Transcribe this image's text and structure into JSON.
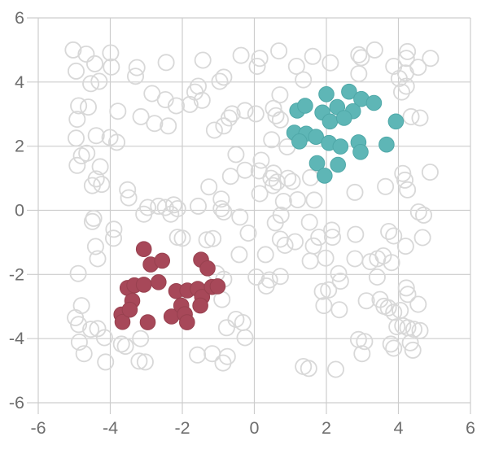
{
  "figure": {
    "kind": "scatter-plot",
    "background": "#ffffff",
    "grid_color": "#cdcdcd",
    "tick_label_color": "#6e6e6e"
  },
  "chart_data": {
    "type": "scatter",
    "title": "",
    "xlabel": "",
    "ylabel": "",
    "xlim": [
      -6,
      6
    ],
    "ylim": [
      -6,
      6
    ],
    "x_ticks": [
      -6,
      -4,
      -2,
      0,
      2,
      4,
      6
    ],
    "y_ticks": [
      6,
      4,
      2,
      0,
      -2,
      -4,
      -6
    ],
    "grid": true,
    "legend": "none",
    "series": [
      {
        "name": "unlabeled",
        "marker": "open-circle",
        "fill": "none",
        "stroke": "#d8d8d8",
        "stroke_width": 1.8,
        "radius": 9.6,
        "points": [
          [
            -5.03,
            5.0
          ],
          [
            -4.67,
            4.87
          ],
          [
            -4.43,
            4.57
          ],
          [
            -3.99,
            4.91
          ],
          [
            -4.95,
            4.34
          ],
          [
            -3.97,
            4.47
          ],
          [
            -3.3,
            4.18
          ],
          [
            -3.26,
            4.45
          ],
          [
            -2.45,
            4.61
          ],
          [
            -1.43,
            4.68
          ],
          [
            -0.37,
            4.83
          ],
          [
            -4.54,
            3.95
          ],
          [
            -4.31,
            4.02
          ],
          [
            -0.96,
            4.02
          ],
          [
            -0.85,
            4.15
          ],
          [
            -1.56,
            3.87
          ],
          [
            -1.65,
            3.69
          ],
          [
            -2.84,
            3.64
          ],
          [
            -2.47,
            3.45
          ],
          [
            -2.17,
            3.26
          ],
          [
            -1.79,
            3.3
          ],
          [
            -1.45,
            3.43
          ],
          [
            -4.88,
            3.26
          ],
          [
            -4.61,
            3.22
          ],
          [
            -4.92,
            2.84
          ],
          [
            -3.79,
            3.09
          ],
          [
            -3.15,
            2.92
          ],
          [
            -2.77,
            2.71
          ],
          [
            -2.39,
            2.63
          ],
          [
            -0.7,
            2.88
          ],
          [
            -0.62,
            3.01
          ],
          [
            -0.85,
            2.63
          ],
          [
            -1.11,
            2.5
          ],
          [
            -4.95,
            2.25
          ],
          [
            -4.39,
            2.33
          ],
          [
            -4.01,
            2.27
          ],
          [
            -3.82,
            2.12
          ],
          [
            -4.8,
            1.7
          ],
          [
            -4.65,
            1.78
          ],
          [
            -4.92,
            1.4
          ],
          [
            -4.28,
            1.36
          ],
          [
            -4.39,
            0.98
          ],
          [
            -4.5,
            0.77
          ],
          [
            -4.24,
            0.81
          ],
          [
            -3.52,
            0.64
          ],
          [
            -3.49,
            0.39
          ],
          [
            -2.96,
            0.09
          ],
          [
            -2.66,
            0.13
          ],
          [
            -2.47,
            0.09
          ],
          [
            -2.24,
            0.17
          ],
          [
            -2.13,
            0.05
          ],
          [
            -1.56,
            0.13
          ],
          [
            -0.92,
            0.35
          ],
          [
            -0.92,
            0.05
          ],
          [
            -0.4,
            -0.21
          ],
          [
            -4.46,
            -0.25
          ],
          [
            -3.07,
            -0.12
          ],
          [
            -2.32,
            -0.12
          ],
          [
            -0.51,
            1.74
          ],
          [
            -0.66,
            1.06
          ],
          [
            -1.26,
            0.73
          ],
          [
            -0.26,
            3.11
          ],
          [
            -0.26,
            1.25
          ],
          [
            0.15,
            4.74
          ],
          [
            0.08,
            4.49
          ],
          [
            0.68,
            4.97
          ],
          [
            1.62,
            4.8
          ],
          [
            1.17,
            4.49
          ],
          [
            1.36,
            4.07
          ],
          [
            2.11,
            4.6
          ],
          [
            2.9,
            4.85
          ],
          [
            2.97,
            4.76
          ],
          [
            3.34,
            5.0
          ],
          [
            2.9,
            4.26
          ],
          [
            3.87,
            4.49
          ],
          [
            4.25,
            4.95
          ],
          [
            4.22,
            4.74
          ],
          [
            4.89,
            4.74
          ],
          [
            4.55,
            4.46
          ],
          [
            4.2,
            4.28
          ],
          [
            4.02,
            4.11
          ],
          [
            4.22,
            3.87
          ],
          [
            4.09,
            3.69
          ],
          [
            0.71,
            3.6
          ],
          [
            0.04,
            3.01
          ],
          [
            0.53,
            3.18
          ],
          [
            0.6,
            2.95
          ],
          [
            0.72,
            2.82
          ],
          [
            4.35,
            2.92
          ],
          [
            4.6,
            2.88
          ],
          [
            0.48,
            2.2
          ],
          [
            0.91,
            1.98
          ],
          [
            0.19,
            1.56
          ],
          [
            0.13,
            1.23
          ],
          [
            0.53,
            1.16
          ],
          [
            0.46,
            1.0
          ],
          [
            0.63,
            0.88
          ],
          [
            0.52,
            0.77
          ],
          [
            0.93,
            1.0
          ],
          [
            1.05,
            0.9
          ],
          [
            1.56,
            1.02
          ],
          [
            0.15,
            0.52
          ],
          [
            0.81,
            0.28
          ],
          [
            1.2,
            0.33
          ],
          [
            1.66,
            0.32
          ],
          [
            2.79,
            0.56
          ],
          [
            3.64,
            0.74
          ],
          [
            4.12,
            1.15
          ],
          [
            4.18,
            0.94
          ],
          [
            4.88,
            1.19
          ],
          [
            4.25,
            0.64
          ],
          [
            0.74,
            -0.15
          ],
          [
            4.56,
            -0.05
          ],
          [
            4.7,
            -0.15
          ],
          [
            0.58,
            -0.39
          ],
          [
            1.53,
            -0.37
          ],
          [
            1.79,
            -0.84
          ],
          [
            -4.5,
            -0.35
          ],
          [
            -3.9,
            -0.59
          ],
          [
            -3.91,
            -0.87
          ],
          [
            -4.41,
            -1.13
          ],
          [
            -4.35,
            -1.51
          ],
          [
            -2.13,
            -0.84
          ],
          [
            -2.0,
            -0.87
          ],
          [
            -1.32,
            -0.92
          ],
          [
            -1.05,
            -1.97
          ],
          [
            -0.85,
            -2.15
          ],
          [
            -0.42,
            -1.38
          ],
          [
            -0.17,
            -0.71
          ],
          [
            -1.15,
            -0.88
          ],
          [
            -0.85,
            -0.05
          ],
          [
            -4.89,
            -1.97
          ],
          [
            -4.8,
            -2.97
          ],
          [
            -4.97,
            -3.35
          ],
          [
            -4.88,
            -3.56
          ],
          [
            -4.54,
            -3.71
          ],
          [
            -4.35,
            -3.69
          ],
          [
            -4.86,
            -4.11
          ],
          [
            -4.73,
            -4.47
          ],
          [
            -4.16,
            -3.97
          ],
          [
            -4.13,
            -4.73
          ],
          [
            -3.69,
            -4.17
          ],
          [
            -3.58,
            -4.24
          ],
          [
            -3.16,
            -4.0
          ],
          [
            -3.2,
            -4.7
          ],
          [
            -3.03,
            -4.73
          ],
          [
            -1.58,
            -4.51
          ],
          [
            -1.17,
            -4.47
          ],
          [
            -0.87,
            -4.76
          ],
          [
            -0.75,
            -4.56
          ],
          [
            -0.51,
            -3.4
          ],
          [
            -0.32,
            -3.5
          ],
          [
            -0.9,
            -2.78
          ],
          [
            -0.77,
            -3.66
          ],
          [
            -0.26,
            -3.97
          ],
          [
            0.72,
            -0.9
          ],
          [
            0.85,
            -1.09
          ],
          [
            1.13,
            -0.98
          ],
          [
            1.64,
            -1.11
          ],
          [
            2.15,
            -0.62
          ],
          [
            2.17,
            -0.84
          ],
          [
            2.81,
            -0.75
          ],
          [
            3.73,
            -0.66
          ],
          [
            3.87,
            -0.8
          ],
          [
            4.67,
            -0.85
          ],
          [
            4.2,
            -1.12
          ],
          [
            0.31,
            -1.38
          ],
          [
            1.55,
            -1.58
          ],
          [
            1.98,
            -1.49
          ],
          [
            2.79,
            -1.51
          ],
          [
            3.22,
            -1.6
          ],
          [
            3.42,
            -1.51
          ],
          [
            3.58,
            -1.42
          ],
          [
            3.81,
            -1.63
          ],
          [
            0.42,
            -2.17
          ],
          [
            0.33,
            -2.36
          ],
          [
            0.05,
            -2.08
          ],
          [
            0.72,
            -2.06
          ],
          [
            2.34,
            -1.97
          ],
          [
            2.39,
            -2.21
          ],
          [
            1.89,
            -2.53
          ],
          [
            2.06,
            -2.48
          ],
          [
            1.93,
            -2.97
          ],
          [
            2.36,
            -3.1
          ],
          [
            3.41,
            -2.08
          ],
          [
            3.11,
            -2.82
          ],
          [
            3.49,
            -2.78
          ],
          [
            3.6,
            -2.99
          ],
          [
            3.72,
            -3.04
          ],
          [
            3.87,
            -3.18
          ],
          [
            4.05,
            -3.12
          ],
          [
            4.22,
            -2.42
          ],
          [
            4.26,
            -2.62
          ],
          [
            4.55,
            -2.93
          ],
          [
            3.96,
            -3.63
          ],
          [
            4.12,
            -3.6
          ],
          [
            4.26,
            -3.66
          ],
          [
            4.43,
            -3.71
          ],
          [
            4.6,
            -3.75
          ],
          [
            3.79,
            -4.17
          ],
          [
            3.87,
            -4.3
          ],
          [
            4.33,
            -4.13
          ],
          [
            4.4,
            -4.36
          ],
          [
            2.89,
            -4.03
          ],
          [
            3.06,
            -4.09
          ],
          [
            2.99,
            -4.47
          ],
          [
            1.36,
            -4.87
          ],
          [
            1.51,
            -4.93
          ],
          [
            2.26,
            -4.96
          ]
        ]
      },
      {
        "name": "teal",
        "marker": "filled-circle",
        "fill": "#5eb6b6",
        "stroke": "#4fa8a8",
        "stroke_width": 1,
        "radius": 9.3,
        "points": [
          [
            2.0,
            3.62
          ],
          [
            2.63,
            3.7
          ],
          [
            2.97,
            3.47
          ],
          [
            3.32,
            3.35
          ],
          [
            1.19,
            3.11
          ],
          [
            1.41,
            3.26
          ],
          [
            1.89,
            3.05
          ],
          [
            2.3,
            3.22
          ],
          [
            2.74,
            3.09
          ],
          [
            2.1,
            2.77
          ],
          [
            2.49,
            2.88
          ],
          [
            3.93,
            2.77
          ],
          [
            1.11,
            2.42
          ],
          [
            1.44,
            2.39
          ],
          [
            1.71,
            2.29
          ],
          [
            1.25,
            2.15
          ],
          [
            2.07,
            2.1
          ],
          [
            2.39,
            1.99
          ],
          [
            2.89,
            2.12
          ],
          [
            2.95,
            1.82
          ],
          [
            3.67,
            2.05
          ],
          [
            1.74,
            1.47
          ],
          [
            2.32,
            1.42
          ],
          [
            1.95,
            1.08
          ]
        ]
      },
      {
        "name": "red",
        "marker": "filled-circle",
        "fill": "#a74859",
        "stroke": "#98414f",
        "stroke_width": 1,
        "radius": 9.3,
        "points": [
          [
            -3.07,
            -1.21
          ],
          [
            -2.88,
            -1.69
          ],
          [
            -2.56,
            -1.57
          ],
          [
            -1.48,
            -1.54
          ],
          [
            -1.3,
            -1.81
          ],
          [
            -3.52,
            -2.42
          ],
          [
            -3.33,
            -2.34
          ],
          [
            -3.07,
            -2.32
          ],
          [
            -2.66,
            -2.24
          ],
          [
            -2.17,
            -2.52
          ],
          [
            -1.86,
            -2.5
          ],
          [
            -1.57,
            -2.45
          ],
          [
            -1.45,
            -2.7
          ],
          [
            -1.18,
            -2.39
          ],
          [
            -1.02,
            -2.37
          ],
          [
            -3.39,
            -2.82
          ],
          [
            -3.69,
            -3.25
          ],
          [
            -3.66,
            -3.48
          ],
          [
            -3.46,
            -3.1
          ],
          [
            -2.96,
            -3.49
          ],
          [
            -2.3,
            -3.31
          ],
          [
            -2.03,
            -2.97
          ],
          [
            -1.93,
            -3.24
          ],
          [
            -1.87,
            -3.49
          ],
          [
            -1.5,
            -2.97
          ]
        ]
      }
    ]
  }
}
